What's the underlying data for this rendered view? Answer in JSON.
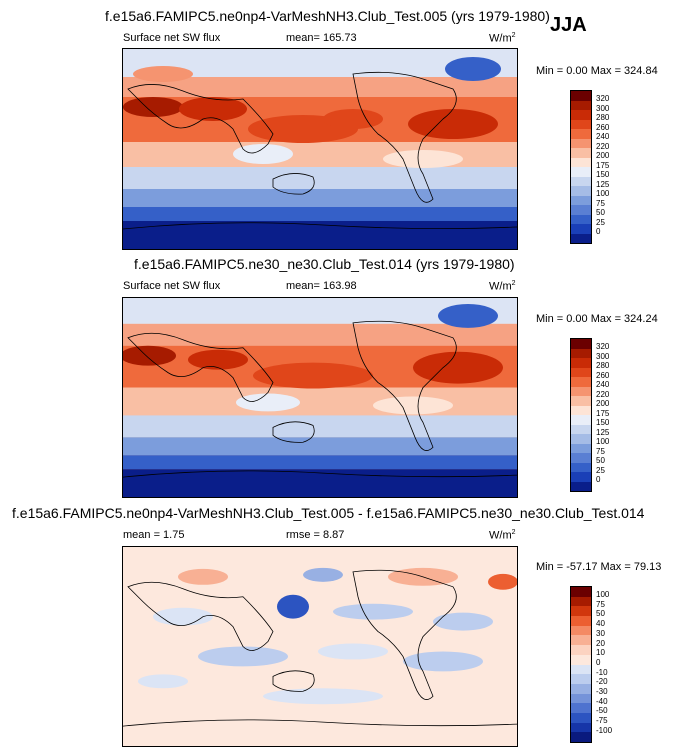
{
  "season": "JJA",
  "panels": [
    {
      "title": "f.e15a6.FAMIPC5.ne0np4-VarMeshNH3.Club_Test.005 (yrs 1979-1980)",
      "left_label": "Surface net SW flux",
      "center_label": "mean= 165.73",
      "units": "W/m",
      "units_sup": "2",
      "minmax": "Min =   0.00 Max = 324.84",
      "colorbar_labels": [
        "320",
        "300",
        "280",
        "260",
        "240",
        "220",
        "200",
        "175",
        "150",
        "125",
        "100",
        "75",
        "50",
        "25",
        "0"
      ]
    },
    {
      "title": "f.e15a6.FAMIPC5.ne30_ne30.Club_Test.014 (yrs 1979-1980)",
      "left_label": "Surface net SW flux",
      "center_label": "mean= 163.98",
      "units": "W/m",
      "units_sup": "2",
      "minmax": "Min =   0.00 Max = 324.24",
      "colorbar_labels": [
        "320",
        "300",
        "280",
        "260",
        "240",
        "220",
        "200",
        "175",
        "150",
        "125",
        "100",
        "75",
        "50",
        "25",
        "0"
      ]
    },
    {
      "title": "f.e15a6.FAMIPC5.ne0np4-VarMeshNH3.Club_Test.005 - f.e15a6.FAMIPC5.ne30_ne30.Club_Test.014",
      "left_label": "mean =   1.75",
      "center_label": "rmse =   8.87",
      "units": "W/m",
      "units_sup": "2",
      "minmax": "Min = -57.17 Max =  79.13",
      "colorbar_labels": [
        "100",
        "75",
        "50",
        "40",
        "30",
        "20",
        "10",
        "0",
        "-10",
        "-20",
        "-30",
        "-40",
        "-50",
        "-75",
        "-100"
      ]
    }
  ],
  "colors": {
    "flux_scale": [
      "#6b0000",
      "#a61b00",
      "#c92b06",
      "#e0461a",
      "#ef6a3c",
      "#f59470",
      "#f9bfa4",
      "#fde4d6",
      "#e9eef8",
      "#c8d6ef",
      "#a5bce6",
      "#7c9ddc",
      "#5a7fd3",
      "#3560c8",
      "#1a3fb7",
      "#0a1e8a"
    ],
    "diff_scale": [
      "#6b0000",
      "#a61b00",
      "#d1370d",
      "#ec5f31",
      "#f48a64",
      "#f8b094",
      "#fcd3c1",
      "#fde8dd",
      "#dbe4f5",
      "#bccdee",
      "#98b0e3",
      "#7593d9",
      "#4f73cf",
      "#2c54c1",
      "#1635a8",
      "#0a1a7e"
    ],
    "coast": "#000000"
  }
}
